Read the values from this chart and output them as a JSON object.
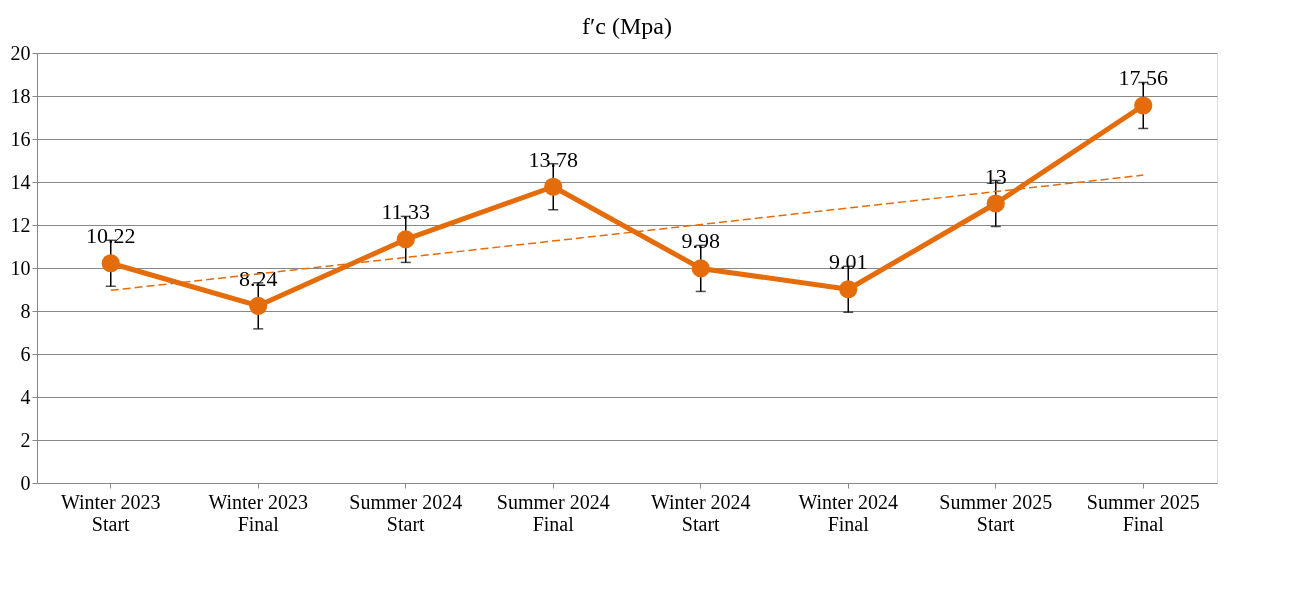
{
  "chart_data": {
    "type": "line",
    "title": "f′c (Mpa)",
    "categories": [
      "Winter 2023\nStart",
      "Winter 2023\nFinal",
      "Summer 2024\nStart",
      "Summer 2024\nFinal",
      "Winter 2024\nStart",
      "Winter 2024\nFinal",
      "Summer 2025\nStart",
      "Summer 2025\nFinal"
    ],
    "series": [
      {
        "color": "#e46c0a",
        "values": [
          10.22,
          8.24,
          11.33,
          13.78,
          9.98,
          9.01,
          13,
          17.56
        ],
        "errors": [
          1.07,
          1.07,
          1.07,
          1.07,
          1.07,
          1.07,
          1.07,
          1.07
        ],
        "value_labels": [
          "10.22",
          "8.24",
          "11.33",
          "13.78",
          "9.98",
          "9.01",
          "13",
          "17.56"
        ],
        "marker": "circle",
        "line_style": "solid"
      },
      {
        "type": "line",
        "color": "#e46c0a",
        "x": [
          "Winter 2023\nStart",
          "Summer 2025\nFinal"
        ],
        "values": [
          8.96,
          14.32
        ],
        "marker": "none",
        "line_style": "dashed"
      }
    ],
    "ylim": [
      0,
      20
    ],
    "yticks": [
      0,
      2,
      4,
      6,
      8,
      10,
      12,
      14,
      16,
      18,
      20
    ],
    "grid": "y"
  }
}
